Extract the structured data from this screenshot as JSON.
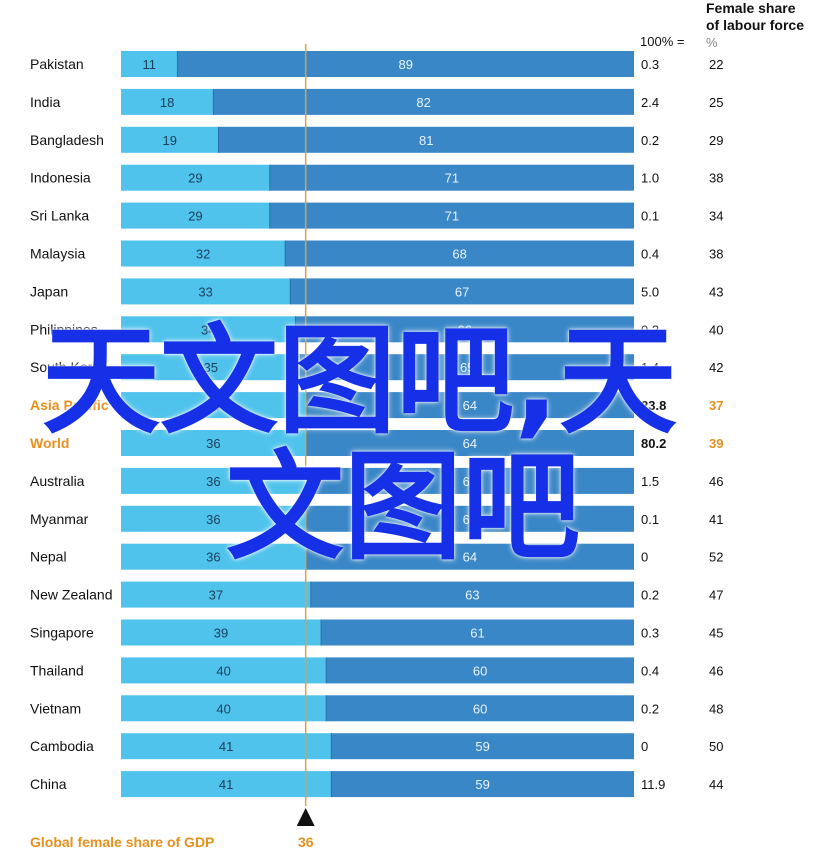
{
  "header": {
    "right_title_line1": "Female share",
    "right_title_line2": "of labour force",
    "hundred_label": "100% =",
    "percent_label": "%"
  },
  "footer": {
    "label": "Global female share of GDP",
    "value": "36"
  },
  "watermark": {
    "line1": "天文图吧,天",
    "line2": "文图吧"
  },
  "colors": {
    "female_bar": "#4fc3ec",
    "male_bar": "#3a87c7",
    "highlight_text": "#e8901e",
    "marker_line": "#e0a040",
    "watermark": "#1530e6"
  },
  "chart_data": {
    "type": "bar",
    "orientation": "horizontal-stacked-100",
    "categories": [
      "Pakistan",
      "India",
      "Bangladesh",
      "Indonesia",
      "Sri Lanka",
      "Malaysia",
      "Japan",
      "Philippines",
      "South Korea",
      "Asia Pacific",
      "World",
      "Australia",
      "Myanmar",
      "Nepal",
      "New Zealand",
      "Singapore",
      "Thailand",
      "Vietnam",
      "Cambodia",
      "China"
    ],
    "highlighted": [
      "Asia Pacific",
      "World"
    ],
    "series": [
      {
        "values": [
          11,
          18,
          19,
          29,
          29,
          32,
          33,
          34,
          35,
          36,
          36,
          36,
          36,
          36,
          37,
          39,
          40,
          40,
          41,
          41
        ]
      },
      {
        "values": [
          89,
          82,
          81,
          71,
          71,
          68,
          67,
          66,
          65,
          64,
          64,
          64,
          64,
          64,
          63,
          61,
          60,
          60,
          59,
          59
        ]
      }
    ],
    "gdp_100pct": [
      "0.3",
      "2.4",
      "0.2",
      "1.0",
      "0.1",
      "0.4",
      "5.0",
      "0.3",
      "1.4",
      "23.8",
      "80.2",
      "1.5",
      "0.1",
      "0",
      "0.2",
      "0.3",
      "0.4",
      "0.2",
      "0",
      "11.9"
    ],
    "female_labour_share": [
      22,
      25,
      29,
      38,
      34,
      38,
      43,
      40,
      42,
      37,
      39,
      46,
      41,
      52,
      47,
      45,
      46,
      48,
      50,
      44
    ],
    "reference_line_value": 36,
    "xlim": [
      0,
      100
    ]
  }
}
